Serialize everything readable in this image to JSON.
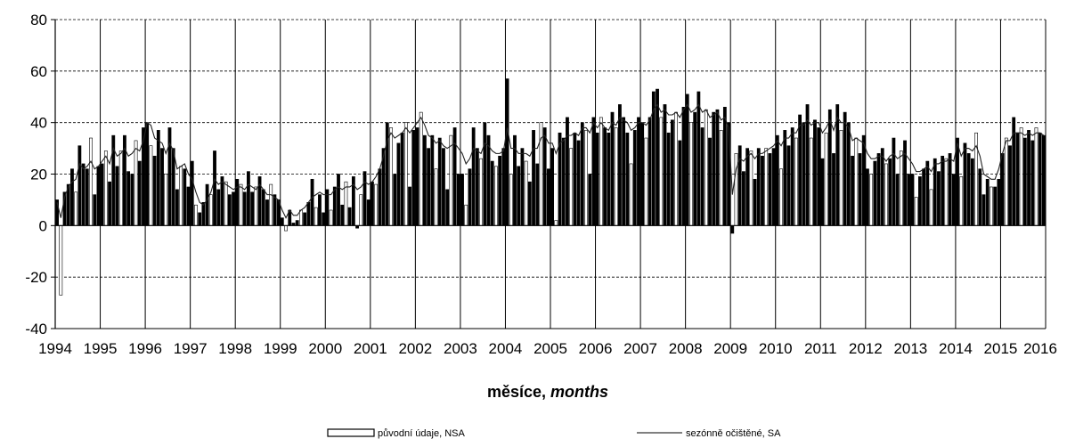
{
  "chart_data": {
    "type": "bar",
    "xlabel_main": "měsíce,",
    "xlabel_italic": "months",
    "ylabel": "",
    "ylim": [
      -40,
      80
    ],
    "yticks": [
      "80",
      "60",
      "40",
      "20",
      "0",
      "-20",
      "-40"
    ],
    "xticks": [
      "1994",
      "1995",
      "1996",
      "1997",
      "1998",
      "1999",
      "2000",
      "2001",
      "2002",
      "2003",
      "2004",
      "2005",
      "2006",
      "2007",
      "2008",
      "2009",
      "2010",
      "2011",
      "2012",
      "2013",
      "2014",
      "2015",
      "2016"
    ],
    "start": "1994-01",
    "end": "2015-12",
    "legend_placement": "bottom",
    "series": [
      {
        "name": "původní údaje, NSA",
        "kind": "bar",
        "values": [
          10,
          -27,
          13,
          16,
          22,
          13,
          31,
          24,
          22,
          34,
          12,
          23,
          24,
          29,
          17,
          35,
          23,
          29,
          35,
          21,
          20,
          33,
          25,
          38,
          40,
          31,
          27,
          37,
          30,
          20,
          38,
          30,
          14,
          23,
          22,
          15,
          25,
          8,
          5,
          9,
          16,
          12,
          29,
          14,
          19,
          17,
          12,
          13,
          18,
          16,
          13,
          21,
          13,
          15,
          19,
          14,
          10,
          16,
          12,
          10,
          3,
          -2,
          6,
          1,
          2,
          6,
          5,
          9,
          18,
          7,
          12,
          5,
          14,
          6,
          15,
          20,
          8,
          17,
          7,
          19,
          -1,
          12,
          21,
          10,
          17,
          16,
          22,
          30,
          40,
          38,
          20,
          32,
          36,
          40,
          15,
          37,
          38,
          44,
          35,
          30,
          35,
          22,
          34,
          30,
          14,
          35,
          38,
          20,
          20,
          8,
          22,
          38,
          30,
          26,
          40,
          35,
          25,
          23,
          27,
          30,
          57,
          20,
          35,
          23,
          30,
          25,
          17,
          37,
          24,
          40,
          38,
          22,
          30,
          2,
          36,
          34,
          42,
          30,
          36,
          33,
          40,
          37,
          20,
          42,
          36,
          42,
          38,
          36,
          44,
          38,
          47,
          42,
          36,
          24,
          37,
          42,
          40,
          34,
          42,
          52,
          53,
          42,
          47,
          36,
          41,
          44,
          33,
          46,
          51,
          40,
          44,
          52,
          38,
          45,
          34,
          44,
          45,
          37,
          46,
          40,
          -3,
          28,
          31,
          21,
          30,
          29,
          18,
          30,
          27,
          30,
          28,
          30,
          35,
          22,
          37,
          31,
          38,
          34,
          43,
          40,
          47,
          34,
          41,
          38,
          26,
          36,
          45,
          28,
          47,
          37,
          44,
          40,
          27,
          34,
          28,
          35,
          22,
          20,
          25,
          28,
          30,
          24,
          26,
          34,
          20,
          29,
          33,
          20,
          20,
          11,
          19,
          22,
          25,
          14,
          26,
          21,
          27,
          26,
          28,
          20,
          34,
          19,
          32,
          28,
          26,
          36,
          22,
          12,
          18,
          15,
          15,
          18,
          28,
          34,
          31,
          42,
          36,
          38,
          34,
          37,
          33,
          38,
          36,
          35
        ]
      },
      {
        "name": "sezónně očištěné, SA",
        "kind": "line",
        "values": [
          9,
          3,
          11,
          15,
          17,
          18,
          24,
          22,
          23,
          25,
          22,
          23,
          25,
          27,
          24,
          30,
          27,
          28,
          30,
          27,
          28,
          30,
          29,
          33,
          40,
          39,
          34,
          33,
          32,
          28,
          32,
          29,
          22,
          23,
          24,
          20,
          18,
          13,
          9,
          8,
          10,
          13,
          18,
          16,
          17,
          16,
          15,
          14,
          15,
          15,
          14,
          16,
          15,
          14,
          16,
          14,
          12,
          12,
          11,
          10,
          6,
          3,
          6,
          4,
          4,
          6,
          7,
          9,
          11,
          12,
          13,
          12,
          12,
          12,
          14,
          15,
          14,
          15,
          15,
          16,
          14,
          15,
          17,
          16,
          17,
          19,
          22,
          27,
          33,
          36,
          34,
          35,
          36,
          38,
          36,
          38,
          40,
          42,
          39,
          35,
          34,
          32,
          33,
          31,
          30,
          31,
          32,
          30,
          28,
          24,
          26,
          30,
          29,
          28,
          32,
          31,
          29,
          28,
          28,
          29,
          38,
          30,
          30,
          28,
          28,
          28,
          27,
          30,
          30,
          34,
          35,
          32,
          32,
          28,
          32,
          33,
          35,
          35,
          36,
          35,
          38,
          38,
          36,
          40,
          38,
          40,
          38,
          37,
          40,
          39,
          42,
          41,
          40,
          37,
          38,
          40,
          40,
          39,
          41,
          45,
          47,
          44,
          45,
          43,
          43,
          44,
          42,
          45,
          47,
          44,
          45,
          47,
          44,
          45,
          42,
          43,
          44,
          41,
          42,
          38,
          12,
          22,
          26,
          25,
          27,
          28,
          26,
          28,
          28,
          29,
          30,
          31,
          33,
          31,
          34,
          34,
          36,
          36,
          39,
          39,
          41,
          39,
          40,
          40,
          36,
          38,
          41,
          37,
          42,
          40,
          40,
          38,
          33,
          34,
          33,
          32,
          28,
          26,
          26,
          27,
          27,
          25,
          27,
          28,
          26,
          27,
          28,
          26,
          24,
          21,
          21,
          22,
          23,
          21,
          24,
          24,
          25,
          25,
          26,
          25,
          32,
          27,
          30,
          30,
          29,
          31,
          27,
          20,
          19,
          18,
          18,
          22,
          28,
          33,
          33,
          36,
          36,
          36,
          35,
          36,
          35,
          36,
          36,
          35
        ]
      }
    ]
  }
}
